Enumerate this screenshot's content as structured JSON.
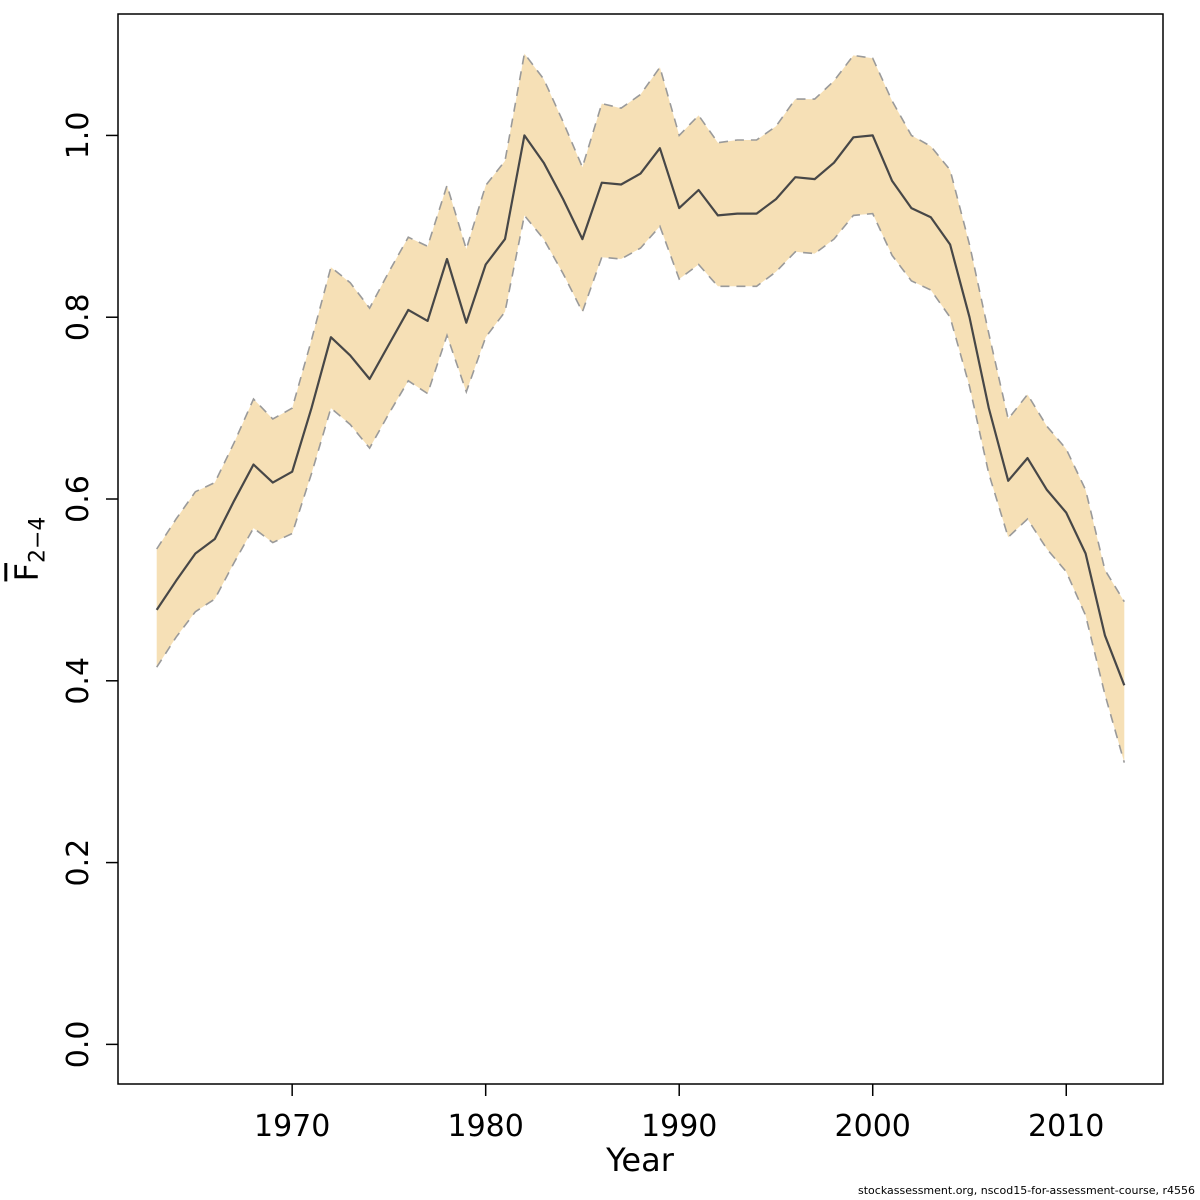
{
  "chart_data": {
    "type": "line",
    "title": "",
    "xlabel": "Year",
    "ylabel_base": "F",
    "ylabel_sub": "2−4",
    "footer": "stockassessment.org, nscod15-for-assessment-course, r4556",
    "x_ticks": [
      1970,
      1980,
      1990,
      2000,
      2010
    ],
    "y_ticks": [
      0.0,
      0.2,
      0.4,
      0.6,
      0.8,
      1.0
    ],
    "xlim": [
      1963,
      2013
    ],
    "ylim": [
      0,
      1.09
    ],
    "grid": false,
    "legend": "none",
    "colors": {
      "band_fill": "#f6e0b6",
      "band_edge": "#9a9a9a",
      "line": "#474747",
      "axis": "#000000"
    },
    "x": [
      1963,
      1964,
      1965,
      1966,
      1967,
      1968,
      1969,
      1970,
      1971,
      1972,
      1973,
      1974,
      1975,
      1976,
      1977,
      1978,
      1979,
      1980,
      1981,
      1982,
      1983,
      1984,
      1985,
      1986,
      1987,
      1988,
      1989,
      1990,
      1991,
      1992,
      1993,
      1994,
      1995,
      1996,
      1997,
      1998,
      1999,
      2000,
      2001,
      2002,
      2003,
      2004,
      2005,
      2006,
      2007,
      2008,
      2009,
      2010,
      2011,
      2012,
      2013
    ],
    "series": [
      {
        "name": "estimate",
        "values": [
          0.478,
          0.51,
          0.54,
          0.556,
          0.598,
          0.638,
          0.618,
          0.63,
          0.7,
          0.778,
          0.758,
          0.732,
          0.77,
          0.808,
          0.796,
          0.864,
          0.794,
          0.858,
          0.886,
          1.0,
          0.97,
          0.93,
          0.886,
          0.948,
          0.946,
          0.958,
          0.986,
          0.92,
          0.94,
          0.912,
          0.914,
          0.914,
          0.93,
          0.954,
          0.952,
          0.97,
          0.998,
          1.0,
          0.95,
          0.92,
          0.91,
          0.88,
          0.8,
          0.7,
          0.62,
          0.645,
          0.61,
          0.585,
          0.54,
          0.45,
          0.395
        ]
      },
      {
        "name": "lower_95",
        "values": [
          0.415,
          0.448,
          0.476,
          0.49,
          0.53,
          0.568,
          0.552,
          0.562,
          0.628,
          0.7,
          0.682,
          0.656,
          0.694,
          0.73,
          0.716,
          0.78,
          0.718,
          0.778,
          0.806,
          0.912,
          0.886,
          0.848,
          0.806,
          0.866,
          0.864,
          0.876,
          0.9,
          0.842,
          0.858,
          0.834,
          0.834,
          0.834,
          0.85,
          0.872,
          0.87,
          0.886,
          0.912,
          0.914,
          0.868,
          0.84,
          0.83,
          0.8,
          0.724,
          0.628,
          0.558,
          0.578,
          0.545,
          0.52,
          0.472,
          0.385,
          0.31
        ]
      },
      {
        "name": "upper_95",
        "values": [
          0.545,
          0.578,
          0.608,
          0.618,
          0.662,
          0.71,
          0.688,
          0.7,
          0.775,
          0.855,
          0.838,
          0.81,
          0.85,
          0.888,
          0.878,
          0.945,
          0.875,
          0.945,
          0.972,
          1.09,
          1.062,
          1.015,
          0.965,
          1.035,
          1.03,
          1.045,
          1.075,
          1.0,
          1.022,
          0.992,
          0.995,
          0.995,
          1.01,
          1.04,
          1.04,
          1.06,
          1.088,
          1.085,
          1.038,
          1.0,
          0.988,
          0.962,
          0.88,
          0.782,
          0.688,
          0.715,
          0.68,
          0.655,
          0.61,
          0.522,
          0.487
        ]
      }
    ]
  }
}
